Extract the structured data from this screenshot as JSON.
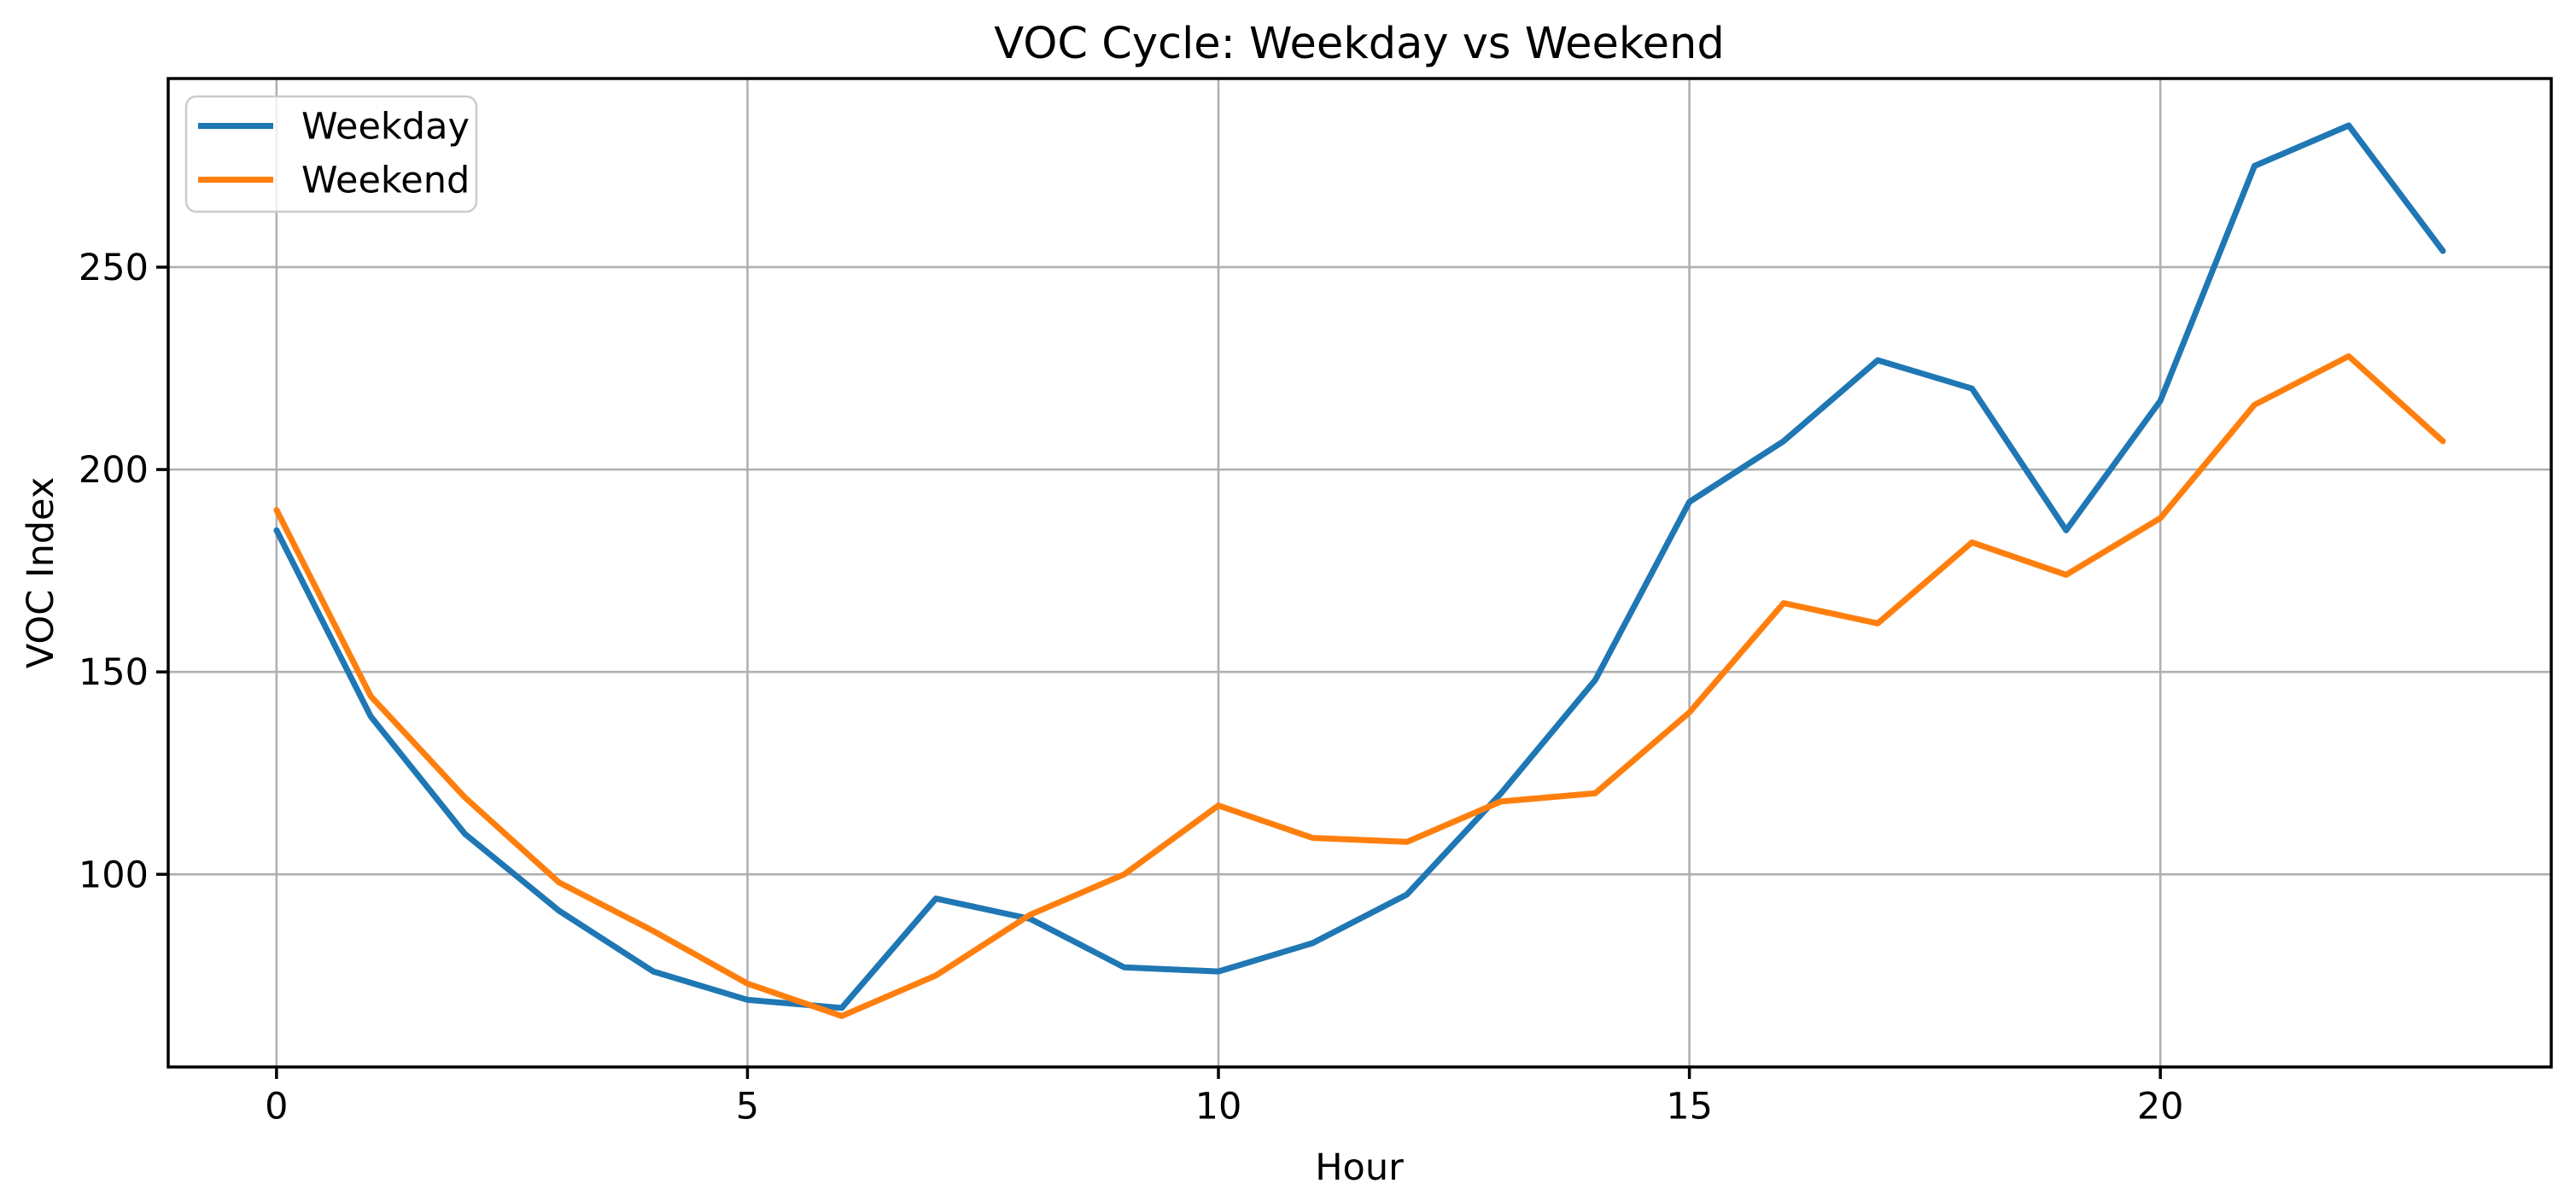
{
  "chart_data": {
    "type": "line",
    "title": "VOC Cycle: Weekday vs Weekend",
    "xlabel": "Hour",
    "ylabel": "VOC Index",
    "x": [
      0,
      1,
      2,
      3,
      4,
      5,
      6,
      7,
      8,
      9,
      10,
      11,
      12,
      13,
      14,
      15,
      16,
      17,
      18,
      19,
      20,
      21,
      22,
      23
    ],
    "series": [
      {
        "name": "Weekday",
        "color": "#1f77b4",
        "values": [
          185,
          139,
          110,
          91,
          76,
          69,
          67,
          94,
          89,
          77,
          76,
          83,
          95,
          120,
          148,
          192,
          207,
          227,
          220,
          185,
          217,
          275,
          285,
          254
        ]
      },
      {
        "name": "Weekend",
        "color": "#ff7f0e",
        "values": [
          190,
          144,
          119,
          98,
          86,
          73,
          65,
          75,
          90,
          100,
          117,
          109,
          108,
          118,
          120,
          140,
          167,
          162,
          182,
          174,
          188,
          216,
          228,
          207
        ]
      }
    ],
    "xticks": [
      0,
      5,
      10,
      15,
      20
    ],
    "yticks": [
      100,
      150,
      200,
      250
    ],
    "xlim": [
      -1.15,
      24.15
    ],
    "ylim": [
      52.4,
      296.6
    ],
    "grid": true,
    "grid_color": "#b0b0b0",
    "axis_color": "#000000",
    "legend_position": "upper left"
  }
}
